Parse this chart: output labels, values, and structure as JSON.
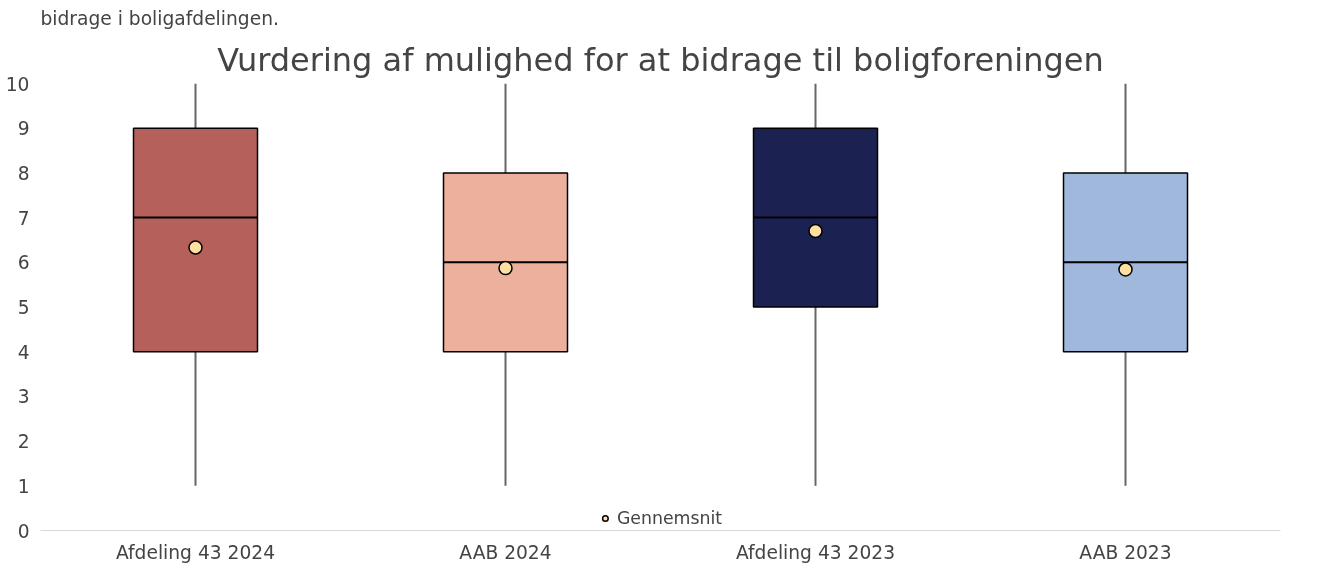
{
  "chart_data": {
    "type": "box",
    "title": "Vurdering af mulighed for at bidrage til boligforeningen",
    "annotations": [
      "bidrage i boligafdelingen."
    ],
    "categories": [
      "Afdeling 43 2024",
      "AAB 2024",
      "Afdeling 43 2023",
      "AAB 2023"
    ],
    "boxes": [
      {
        "low": 1,
        "q1": 4,
        "median": 7,
        "q3": 9,
        "high": 10
      },
      {
        "low": 1,
        "q1": 4,
        "median": 6,
        "q3": 8,
        "high": 10
      },
      {
        "low": 1,
        "q1": 5,
        "median": 7,
        "q3": 9,
        "high": 10
      },
      {
        "low": 1,
        "q1": 4,
        "median": 6,
        "q3": 8,
        "high": 10
      }
    ],
    "colors": [
      "#b5605a",
      "#ecb09c",
      "#1b2151",
      "#a0b8dc"
    ],
    "series": [
      {
        "type": "scatter",
        "name": "Gennemsnit",
        "color": "#ffe0a0",
        "x": [
          "Afdeling 43 2024",
          "AAB 2024",
          "Afdeling 43 2023",
          "AAB 2023"
        ],
        "values": [
          6.33,
          5.87,
          6.7,
          5.84
        ]
      }
    ],
    "ylim": [
      0,
      10
    ],
    "yticks": [
      0,
      1,
      2,
      3,
      4,
      5,
      6,
      7,
      8,
      9,
      10
    ],
    "grid": false,
    "legend": "bottom",
    "marker": "circle"
  }
}
